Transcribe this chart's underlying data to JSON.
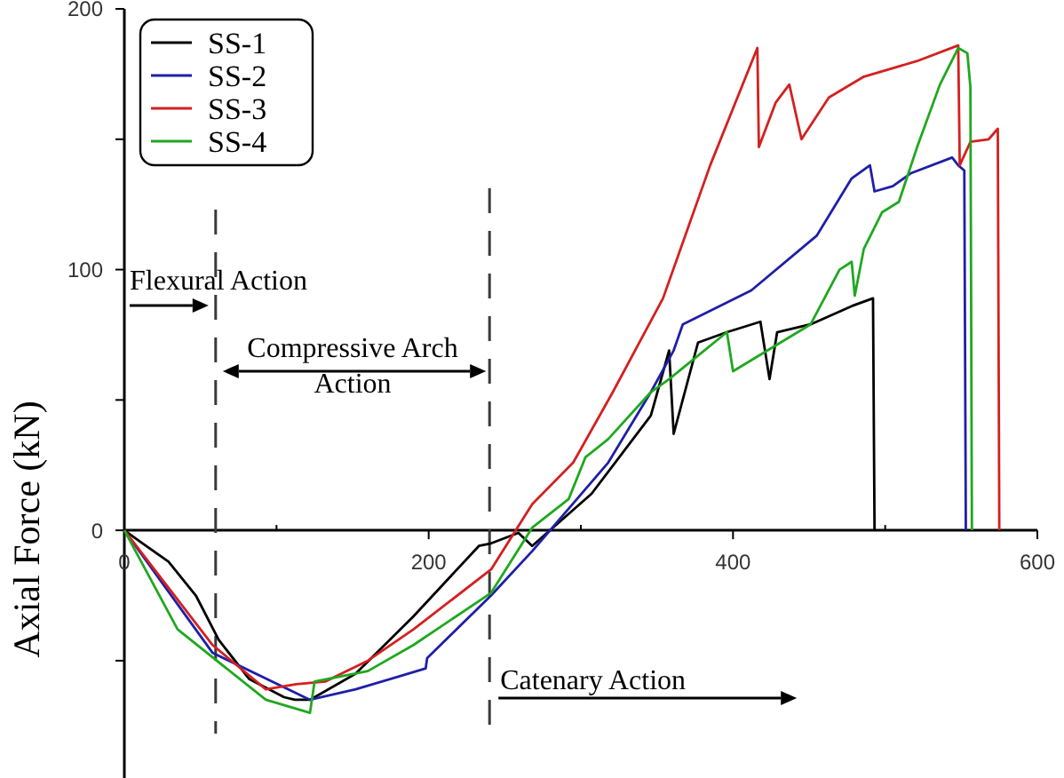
{
  "chart_data": {
    "type": "line",
    "ylabel": "Axial Force (kN)",
    "xlim": [
      0,
      600
    ],
    "xticks": [
      0,
      {
        "value": 100,
        "label": null
      },
      200,
      {
        "value": 300,
        "label": null
      },
      400,
      {
        "value": 500,
        "label": null
      },
      600
    ],
    "ylim": [
      -95,
      200
    ],
    "yticks": [
      {
        "value": -50,
        "label": null
      },
      0,
      {
        "value": 50,
        "label": null
      },
      100,
      {
        "value": 150,
        "label": null
      },
      200
    ],
    "grid": false,
    "legend": "top left",
    "line_style": "solid",
    "marker": "none",
    "annotations": [
      "Flexural Action",
      "Compressive Arch Action",
      "Catenary Action"
    ],
    "ref_lines": [
      {
        "axis": "x",
        "value": 60,
        "color": "#3a3a3a",
        "line_style": "dashed"
      },
      {
        "axis": "x",
        "value": 240,
        "color": "#3a3a3a",
        "line_style": "dashed"
      }
    ],
    "series": [
      {
        "name": "SS-1",
        "color": "#000000",
        "x": [
          0,
          12,
          29,
          47,
          62,
          82,
          105,
          112,
          122,
          152,
          190,
          233,
          241,
          259,
          268,
          307,
          346,
          358,
          361,
          377,
          396,
          418,
          424,
          429,
          451,
          478,
          492,
          493
        ],
        "values": [
          0,
          -5,
          -12,
          -25,
          -42,
          -57,
          -64,
          -65,
          -65,
          -55,
          -33,
          -6,
          -5,
          -1,
          -6,
          14,
          44,
          69,
          37,
          72,
          76,
          80,
          58,
          76,
          79,
          86,
          89,
          0
        ]
      },
      {
        "name": "SS-2",
        "color": "#1f1fa8",
        "x": [
          0,
          58,
          122,
          152,
          198,
          199,
          241,
          268,
          318,
          346,
          361,
          367,
          412,
          455,
          478,
          490,
          493,
          505,
          517,
          544,
          548,
          552,
          553
        ],
        "values": [
          0,
          -47,
          -65,
          -61,
          -53,
          -49,
          -25,
          -8,
          26,
          53,
          69,
          79,
          92,
          113,
          135,
          140,
          130,
          132,
          137,
          143,
          140,
          138,
          0
        ]
      },
      {
        "name": "SS-3",
        "color": "#d42020",
        "x": [
          0,
          58,
          93,
          113,
          132,
          160,
          190,
          241,
          268,
          295,
          321,
          354,
          385,
          416,
          417,
          428,
          437,
          445,
          463,
          486,
          521,
          548,
          549,
          556,
          568,
          574,
          575
        ],
        "values": [
          0,
          -44,
          -61,
          -59,
          -58,
          -50,
          -38,
          -15,
          10,
          26,
          53,
          89,
          140,
          185,
          147,
          164,
          171,
          150,
          166,
          174,
          180,
          186,
          140,
          149,
          150,
          154,
          0
        ]
      },
      {
        "name": "SS-4",
        "color": "#1fa81f",
        "x": [
          0,
          35,
          93,
          122,
          125,
          160,
          190,
          241,
          268,
          292,
          303,
          318,
          346,
          358,
          396,
          400,
          451,
          470,
          478,
          480,
          486,
          498,
          509,
          521,
          536,
          548,
          554,
          556,
          557
        ],
        "values": [
          0,
          -38,
          -65,
          -70,
          -58,
          -54,
          -44,
          -24,
          1,
          12,
          28,
          35,
          53,
          58,
          76,
          61,
          79,
          100,
          103,
          90,
          108,
          122,
          126,
          147,
          171,
          185,
          183,
          170,
          0
        ]
      }
    ]
  }
}
